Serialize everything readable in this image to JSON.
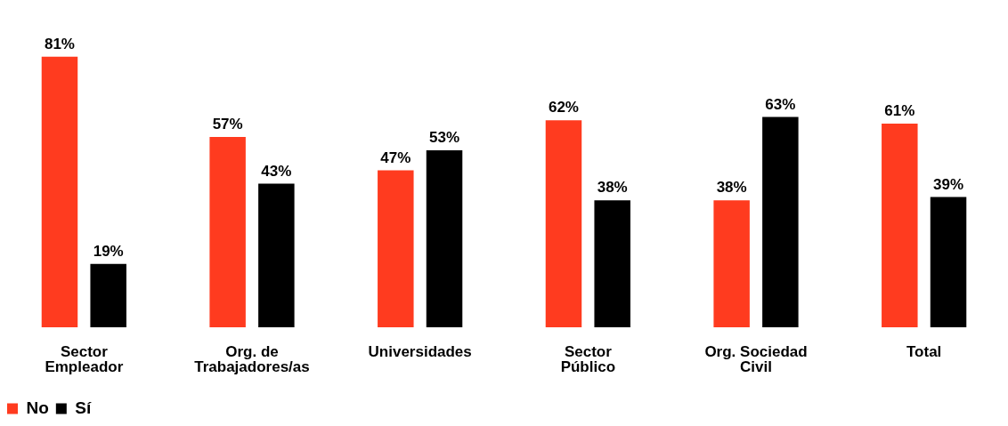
{
  "chart_data": {
    "type": "bar",
    "categories": [
      "Sector Empleador",
      "Org. de Trabajadores/as",
      "Universidades",
      "Sector Público",
      "Org. Sociedad Civil",
      "Total"
    ],
    "series": [
      {
        "name": "No",
        "color": "#ff3b1f",
        "values": [
          81,
          57,
          47,
          62,
          38,
          61
        ],
        "value_labels": [
          "81%",
          "57%",
          "47%",
          "62%",
          "38%",
          "61%"
        ]
      },
      {
        "name": "Sí",
        "color": "#000000",
        "values": [
          19,
          43,
          53,
          38,
          63,
          39
        ],
        "value_labels": [
          "19%",
          "43%",
          "53%",
          "38%",
          "63%",
          "39%"
        ]
      }
    ],
    "grid": false,
    "legend": "bottom left"
  }
}
